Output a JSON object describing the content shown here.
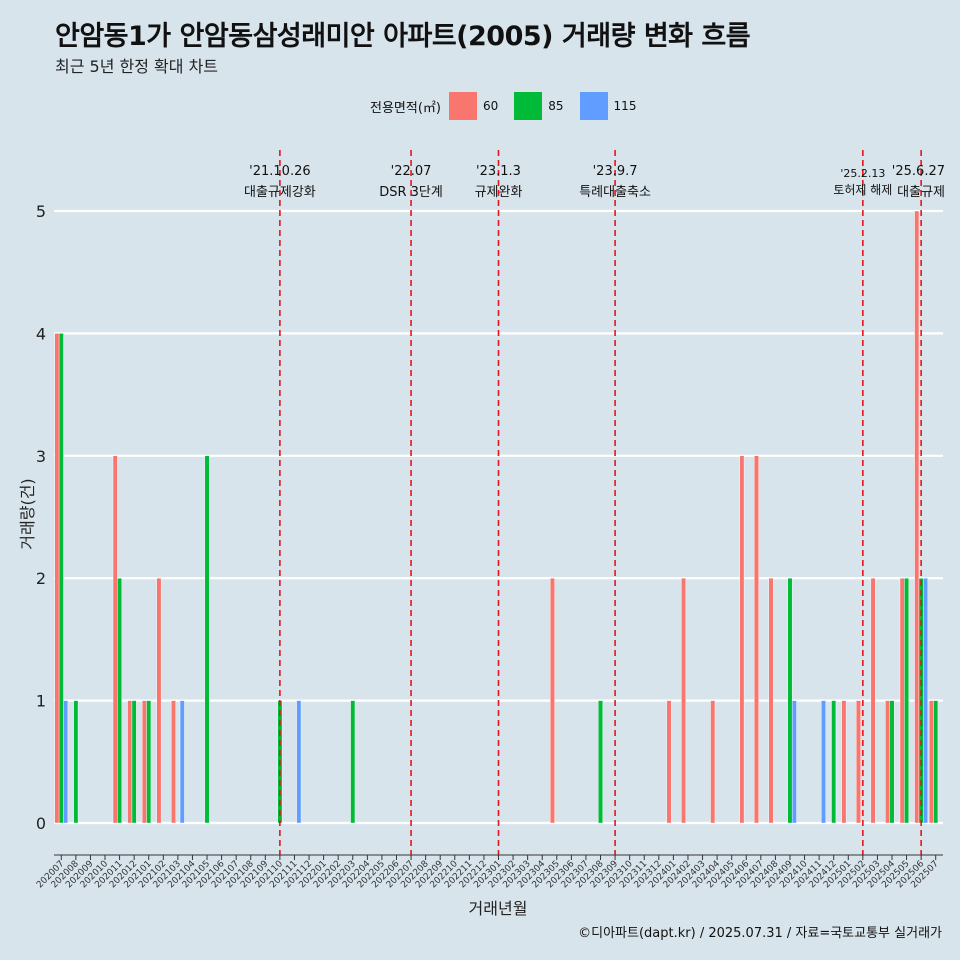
{
  "title": "안암동1가 안암동삼성래미안 아파트(2005) 거래량 변화 흐름",
  "subtitle": "최근 5년 한정 확대 차트",
  "caption": "©디아파트(dapt.kr) / 2025.07.31 / 자료=국토교통부 실거래가",
  "legend": {
    "title": "전용면적(㎡)",
    "items": [
      {
        "label": "60",
        "color": "#f8766d"
      },
      {
        "label": "85",
        "color": "#00ba38"
      },
      {
        "label": "115",
        "color": "#619cff"
      }
    ]
  },
  "chart_data": {
    "type": "bar",
    "xlabel": "거래년월",
    "ylabel": "거래량(건)",
    "ylim": [
      0,
      5
    ],
    "yticks": [
      0,
      1,
      2,
      3,
      4,
      5
    ],
    "grid": true,
    "legend_position": "top",
    "categories": [
      "202007",
      "202008",
      "202009",
      "202010",
      "202011",
      "202012",
      "202101",
      "202102",
      "202103",
      "202104",
      "202105",
      "202106",
      "202107",
      "202108",
      "202109",
      "202110",
      "202111",
      "202112",
      "202201",
      "202202",
      "202203",
      "202204",
      "202205",
      "202206",
      "202207",
      "202208",
      "202209",
      "202210",
      "202211",
      "202212",
      "202301",
      "202302",
      "202303",
      "202304",
      "202305",
      "202306",
      "202307",
      "202308",
      "202309",
      "202310",
      "202311",
      "202312",
      "202401",
      "202402",
      "202403",
      "202404",
      "202405",
      "202406",
      "202407",
      "202408",
      "202409",
      "202410",
      "202411",
      "202412",
      "202501",
      "202502",
      "202503",
      "202504",
      "202505",
      "202506",
      "202507"
    ],
    "series": [
      {
        "name": "60",
        "color": "#f8766d",
        "values": [
          4,
          0,
          0,
          0,
          3,
          1,
          1,
          2,
          1,
          0,
          0,
          0,
          0,
          0,
          0,
          0,
          0,
          0,
          0,
          0,
          0,
          0,
          0,
          0,
          0,
          0,
          0,
          0,
          0,
          0,
          0,
          0,
          0,
          0,
          2,
          0,
          0,
          0,
          0,
          0,
          0,
          0,
          1,
          2,
          0,
          1,
          0,
          3,
          3,
          2,
          0,
          0,
          0,
          0,
          1,
          1,
          2,
          1,
          2,
          5,
          1
        ]
      },
      {
        "name": "85",
        "color": "#00ba38",
        "values": [
          4,
          1,
          0,
          0,
          2,
          1,
          1,
          0,
          0,
          0,
          3,
          0,
          0,
          0,
          0,
          1,
          0,
          0,
          0,
          0,
          1,
          0,
          0,
          0,
          0,
          0,
          0,
          0,
          0,
          0,
          0,
          0,
          0,
          0,
          0,
          0,
          0,
          1,
          0,
          0,
          0,
          0,
          0,
          0,
          0,
          0,
          0,
          0,
          0,
          0,
          2,
          0,
          0,
          1,
          0,
          0,
          0,
          1,
          2,
          2,
          1
        ]
      },
      {
        "name": "115",
        "color": "#619cff",
        "values": [
          1,
          0,
          0,
          0,
          0,
          0,
          0,
          0,
          1,
          0,
          0,
          0,
          0,
          0,
          0,
          0,
          1,
          0,
          0,
          0,
          0,
          0,
          0,
          0,
          0,
          0,
          0,
          0,
          0,
          0,
          0,
          0,
          0,
          0,
          0,
          0,
          0,
          0,
          0,
          0,
          0,
          0,
          0,
          0,
          0,
          0,
          0,
          0,
          0,
          0,
          1,
          0,
          1,
          0,
          0,
          0,
          0,
          0,
          0,
          2,
          0
        ]
      }
    ],
    "annotations": [
      {
        "category": "202110",
        "date": "'21.10.26",
        "text": "대출규제강화"
      },
      {
        "category": "202207",
        "date": "'22.07",
        "text": "DSR 3단계"
      },
      {
        "category": "202301",
        "date": "'23.1.3",
        "text": "규제완화"
      },
      {
        "category": "202309",
        "date": "'23.9.7",
        "text": "특례대출축소"
      },
      {
        "category": "202502",
        "date": "'25.2.13",
        "text": "토허제 해제"
      },
      {
        "category": "202506",
        "date": "'25.6.27",
        "text": "대출규제"
      }
    ]
  }
}
